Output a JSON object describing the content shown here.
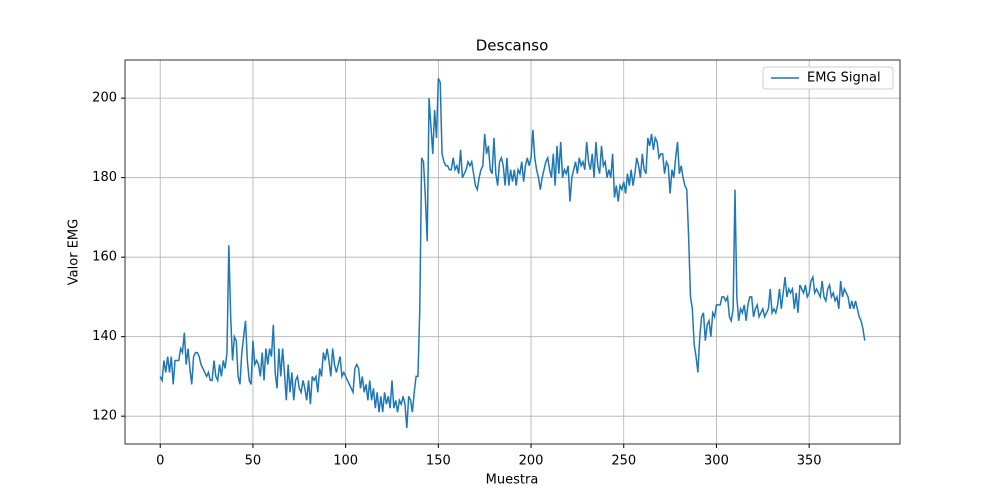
{
  "chart_data": {
    "type": "line",
    "title": "Descanso",
    "x_label": "Muestra",
    "y_label": "Valor EMG",
    "x": [
      0,
      1,
      2,
      3,
      4,
      5,
      6,
      7,
      8,
      9,
      10,
      11,
      12,
      13,
      14,
      15,
      16,
      17,
      18,
      19,
      20,
      21,
      22,
      23,
      24,
      25,
      26,
      27,
      28,
      29,
      30,
      31,
      32,
      33,
      34,
      35,
      36,
      37,
      38,
      39,
      40,
      41,
      42,
      43,
      44,
      45,
      46,
      47,
      48,
      49,
      50,
      51,
      52,
      53,
      54,
      55,
      56,
      57,
      58,
      59,
      60,
      61,
      62,
      63,
      64,
      65,
      66,
      67,
      68,
      69,
      70,
      71,
      72,
      73,
      74,
      75,
      76,
      77,
      78,
      79,
      80,
      81,
      82,
      83,
      84,
      85,
      86,
      87,
      88,
      89,
      90,
      91,
      92,
      93,
      94,
      95,
      96,
      97,
      98,
      99,
      100,
      101,
      102,
      103,
      104,
      105,
      106,
      107,
      108,
      109,
      110,
      111,
      112,
      113,
      114,
      115,
      116,
      117,
      118,
      119,
      120,
      121,
      122,
      123,
      124,
      125,
      126,
      127,
      128,
      129,
      130,
      131,
      132,
      133,
      134,
      135,
      136,
      137,
      138,
      139,
      140,
      141,
      142,
      143,
      144,
      145,
      146,
      147,
      148,
      149,
      150,
      151,
      152,
      153,
      154,
      155,
      156,
      157,
      158,
      159,
      160,
      161,
      162,
      163,
      164,
      165,
      166,
      167,
      168,
      169,
      170,
      171,
      172,
      173,
      174,
      175,
      176,
      177,
      178,
      179,
      180,
      181,
      182,
      183,
      184,
      185,
      186,
      187,
      188,
      189,
      190,
      191,
      192,
      193,
      194,
      195,
      196,
      197,
      198,
      199,
      200,
      201,
      202,
      203,
      204,
      205,
      206,
      207,
      208,
      209,
      210,
      211,
      212,
      213,
      214,
      215,
      216,
      217,
      218,
      219,
      220,
      221,
      222,
      223,
      224,
      225,
      226,
      227,
      228,
      229,
      230,
      231,
      232,
      233,
      234,
      235,
      236,
      237,
      238,
      239,
      240,
      241,
      242,
      243,
      244,
      245,
      246,
      247,
      248,
      249,
      250,
      251,
      252,
      253,
      254,
      255,
      256,
      257,
      258,
      259,
      260,
      261,
      262,
      263,
      264,
      265,
      266,
      267,
      268,
      269,
      270,
      271,
      272,
      273,
      274,
      275,
      276,
      277,
      278,
      279,
      280,
      281,
      282,
      283,
      284,
      285,
      286,
      287,
      288,
      289,
      290,
      291,
      292,
      293,
      294,
      295,
      296,
      297,
      298,
      299,
      300,
      301,
      302,
      303,
      304,
      305,
      306,
      307,
      308,
      309,
      310,
      311,
      312,
      313,
      314,
      315,
      316,
      317,
      318,
      319,
      320,
      321,
      322,
      323,
      324,
      325,
      326,
      327,
      328,
      329,
      330,
      331,
      332,
      333,
      334,
      335,
      336,
      337,
      338,
      339,
      340,
      341,
      342,
      343,
      344,
      345,
      346,
      347,
      348,
      349,
      350,
      351,
      352,
      353,
      354,
      355,
      356,
      357,
      358,
      359,
      360,
      361,
      362,
      363,
      364,
      365,
      366,
      367,
      368,
      369,
      370,
      371,
      372,
      373,
      374,
      375,
      376,
      377,
      378,
      379,
      380
    ],
    "series": [
      {
        "name": "EMG Signal",
        "color": "#1f77b4",
        "values": [
          130,
          129,
          134,
          131,
          135,
          131,
          135,
          128,
          134,
          134,
          134,
          137,
          136,
          141,
          133,
          137,
          132,
          128,
          135,
          136,
          136,
          135,
          133,
          132,
          131,
          130,
          131,
          129,
          129,
          134,
          130,
          129,
          133,
          130,
          134,
          132,
          136,
          163,
          145,
          134,
          140,
          139,
          130,
          128,
          136,
          140,
          144,
          134,
          129,
          128,
          139,
          133,
          134,
          133,
          130,
          136,
          129,
          137,
          133,
          137,
          135,
          143,
          131,
          127,
          137,
          130,
          137,
          131,
          124,
          133,
          126,
          131,
          124,
          129,
          130,
          127,
          126,
          129,
          127,
          124,
          129,
          123,
          130,
          129,
          130,
          126,
          132,
          130,
          136,
          134,
          137,
          134,
          130,
          137,
          133,
          131,
          133,
          135,
          130,
          131,
          130,
          129,
          128,
          127,
          126,
          132,
          133,
          132,
          127,
          130,
          126,
          128,
          124,
          129,
          124,
          127,
          122,
          126,
          121,
          125,
          121,
          126,
          123,
          125,
          122,
          129,
          122,
          124,
          121,
          124,
          123,
          125,
          123,
          117,
          125,
          124,
          121,
          126,
          130,
          130,
          147,
          185,
          184,
          175,
          164,
          200,
          193,
          186,
          197,
          190,
          205,
          204,
          186,
          184,
          183,
          183,
          182,
          182,
          185,
          182,
          183,
          181,
          187,
          180,
          181,
          182,
          184,
          183,
          184,
          181,
          178,
          177,
          180,
          182,
          183,
          191,
          186,
          188,
          182,
          181,
          190,
          181,
          178,
          184,
          185,
          183,
          178,
          185,
          178,
          182,
          179,
          182,
          178,
          182,
          181,
          184,
          179,
          183,
          185,
          183,
          185,
          192,
          185,
          182,
          180,
          177,
          180,
          182,
          184,
          185,
          182,
          180,
          186,
          178,
          188,
          181,
          189,
          180,
          182,
          181,
          183,
          174,
          180,
          182,
          184,
          181,
          185,
          183,
          184,
          182,
          189,
          184,
          182,
          186,
          180,
          189,
          183,
          181,
          188,
          183,
          184,
          180,
          182,
          180,
          186,
          175,
          178,
          174,
          178,
          177,
          179,
          176,
          181,
          178,
          182,
          178,
          181,
          185,
          183,
          180,
          186,
          182,
          181,
          190,
          188,
          191,
          187,
          190,
          189,
          185,
          186,
          186,
          181,
          184,
          183,
          176,
          182,
          180,
          185,
          189,
          181,
          183,
          180,
          178,
          177,
          165,
          150,
          147,
          138,
          135,
          131,
          140,
          145,
          146,
          139,
          143,
          144,
          140,
          146,
          145,
          148,
          148,
          148,
          150,
          150,
          149,
          150,
          145,
          144,
          147,
          177,
          150,
          144,
          147,
          146,
          148,
          144,
          148,
          150,
          150,
          145,
          147,
          148,
          145,
          146,
          147,
          145,
          146,
          147,
          152,
          146,
          147,
          146,
          148,
          152,
          147,
          151,
          155,
          150,
          152,
          151,
          152,
          147,
          151,
          146,
          153,
          152,
          151,
          153,
          150,
          151,
          154,
          155,
          151,
          152,
          151,
          150,
          154,
          150,
          149,
          152,
          153,
          150,
          151,
          149,
          150,
          147,
          154,
          150,
          152,
          151,
          150,
          147,
          149,
          147,
          149,
          147,
          145,
          144,
          142,
          139
        ]
      }
    ],
    "xlim": [
      -19,
      399
    ],
    "ylim": [
      113,
      209.6
    ],
    "xticks": [
      0,
      50,
      100,
      150,
      200,
      250,
      300,
      350
    ],
    "yticks": [
      120,
      140,
      160,
      180,
      200
    ],
    "grid": true,
    "legend": "upper right"
  }
}
